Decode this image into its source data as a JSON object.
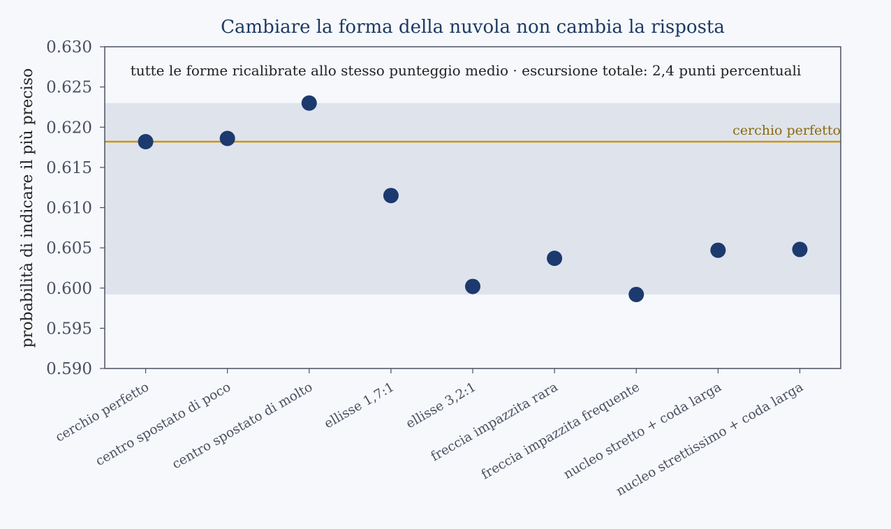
{
  "chart_data": {
    "type": "scatter",
    "title": "Cambiare la forma della nuvola non cambia la risposta",
    "xlabel": "",
    "ylabel": "probabilità di indicare il più preciso",
    "annotation": "tutte le forme ricalibrate allo stesso punteggio medio · escursione totale: 2,4 punti percentuali",
    "categories": [
      "cerchio perfetto",
      "centro spostato di poco",
      "centro spostato di molto",
      "ellisse 1,7:1",
      "ellisse 3,2:1",
      "freccia impazzita rara",
      "freccia impazzita frequente",
      "nucleo stretto + coda larga",
      "nucleo strettissimo + coda larga"
    ],
    "values": [
      0.6182,
      0.6186,
      0.623,
      0.6115,
      0.6002,
      0.6037,
      0.5992,
      0.6047,
      0.6048
    ],
    "ylim": [
      0.59,
      0.63
    ],
    "yticks": [
      "0.590",
      "0.595",
      "0.600",
      "0.605",
      "0.610",
      "0.615",
      "0.620",
      "0.625",
      "0.630"
    ],
    "band": {
      "from": 0.5992,
      "to": 0.623
    },
    "reference_line": {
      "value": 0.6182,
      "label": "cerchio perfetto"
    },
    "grid": false,
    "legend": "none",
    "colors": {
      "point": "#1c3a6e",
      "reference": "#c9980f",
      "reference_label": "#8a6a08",
      "band": "#dfe3ec",
      "axis": "#4a5060",
      "title": "#1d3a63"
    }
  }
}
